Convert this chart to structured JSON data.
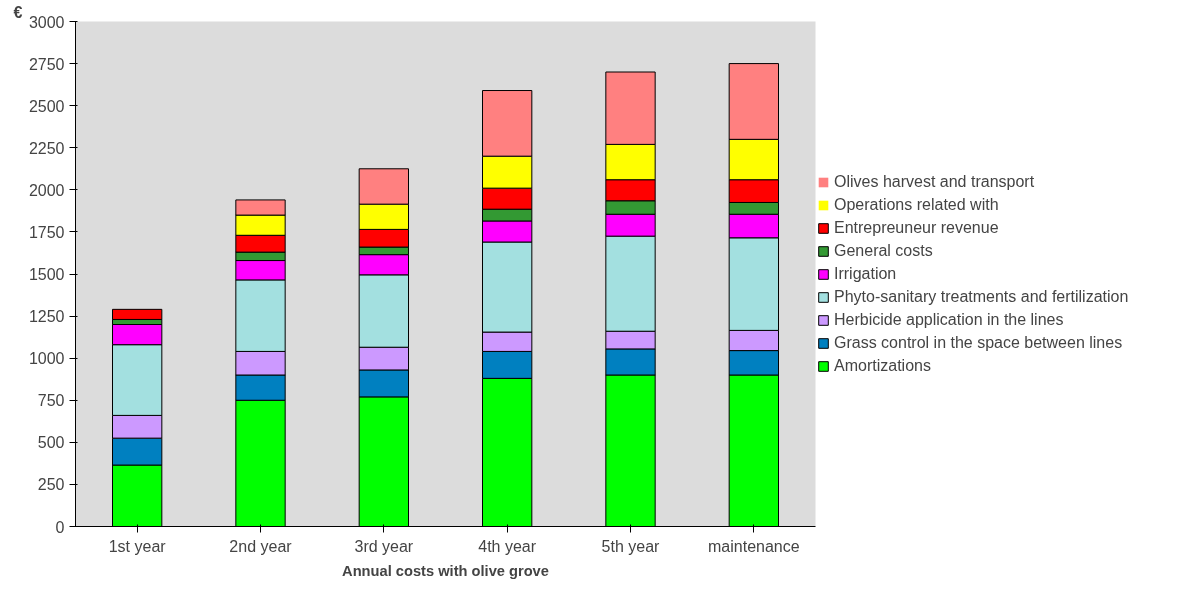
{
  "chart_data": {
    "type": "bar",
    "stacked": true,
    "xlabel": "Annual costs with olive grove",
    "ylabel": "€",
    "categories": [
      "1st year",
      "2nd year",
      "3rd year",
      "4th year",
      "5th year",
      "maintenance"
    ],
    "ylim": [
      0,
      3000
    ],
    "yticks": [
      0,
      250,
      500,
      750,
      1000,
      1250,
      1500,
      1750,
      2000,
      2250,
      2500,
      2750,
      3000
    ],
    "grid": false,
    "legend": "right",
    "series": [
      {
        "name": "Amortizations",
        "color": "#00ff00",
        "values": [
          365,
          750,
          770,
          880,
          900,
          900
        ]
      },
      {
        "name": "Grass control in the space between lines",
        "color": "#0080c0",
        "values": [
          160,
          150,
          160,
          160,
          155,
          145
        ]
      },
      {
        "name": "Herbicide application in the lines",
        "color": "#cc99ff",
        "values": [
          135,
          140,
          135,
          115,
          105,
          120
        ]
      },
      {
        "name": "Phyto-sanitary treatments and fertilization",
        "color": "#a3e0e0",
        "values": [
          420,
          425,
          430,
          535,
          565,
          550
        ]
      },
      {
        "name": "Irrigation",
        "color": "#ff00ff",
        "values": [
          120,
          115,
          120,
          125,
          130,
          140
        ]
      },
      {
        "name": "General costs",
        "color": "#339933",
        "values": [
          30,
          50,
          45,
          70,
          80,
          70
        ]
      },
      {
        "name": "Entrepreuneur revenue",
        "color": "#ff0000",
        "values": [
          60,
          100,
          105,
          125,
          125,
          135
        ]
      },
      {
        "name": "Operations related with",
        "color": "#ffff00",
        "values": [
          0,
          120,
          150,
          190,
          210,
          240
        ]
      },
      {
        "name": "Olives harvest and transport",
        "color": "#ff8080",
        "values": [
          0,
          90,
          210,
          390,
          430,
          450
        ]
      }
    ]
  }
}
